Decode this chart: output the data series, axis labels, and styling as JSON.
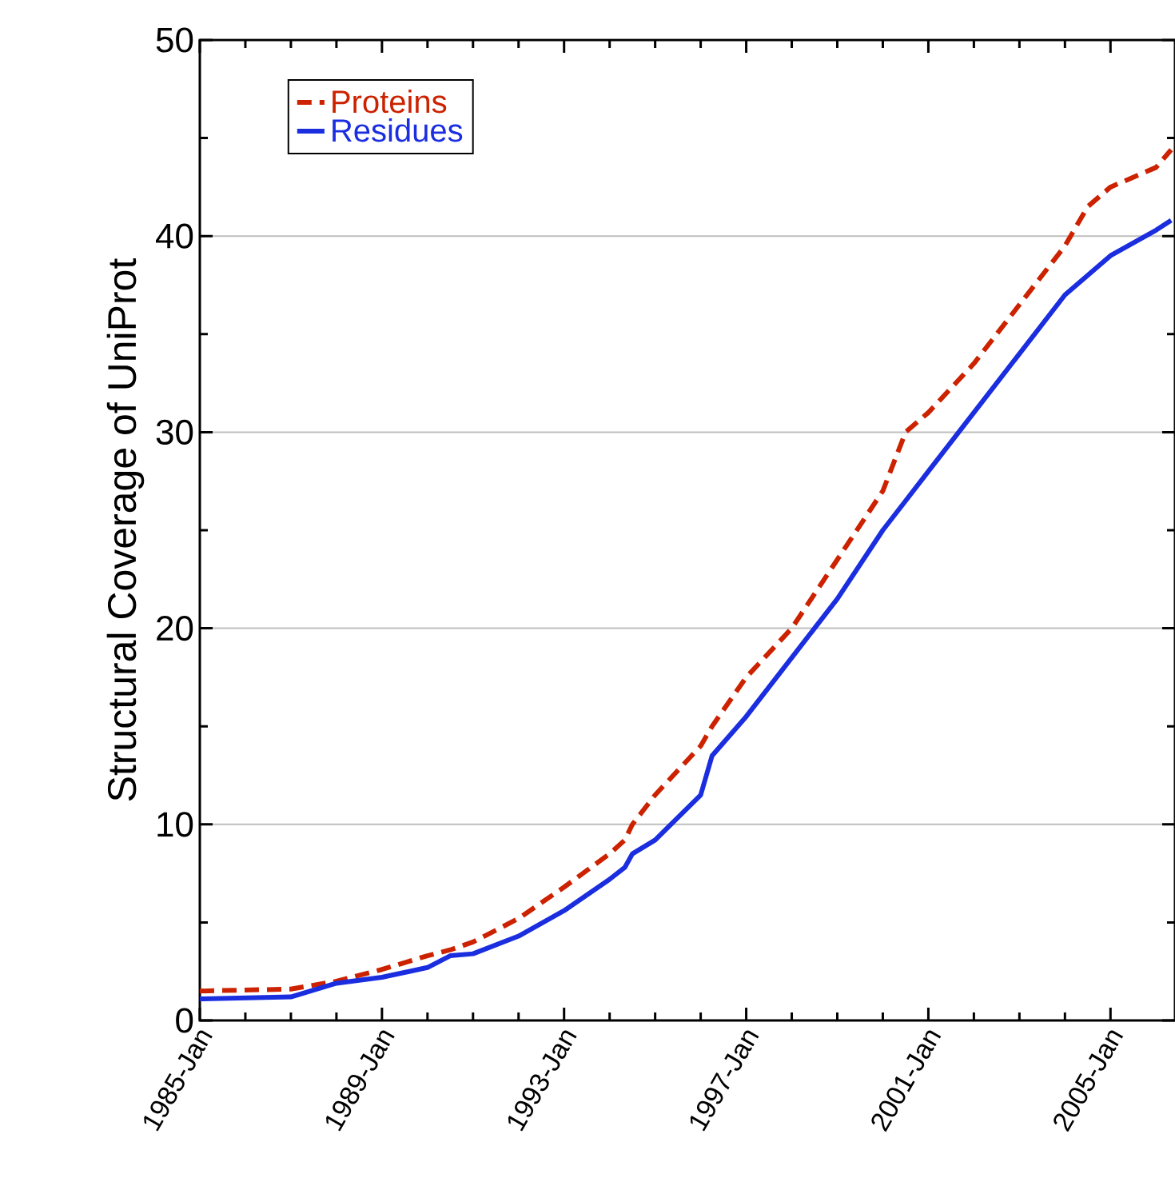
{
  "chart_data": {
    "type": "line",
    "ylabel": "Structural Coverage of UniProt",
    "x": [
      "1985-01",
      "1987-01",
      "1988-01",
      "1989-01",
      "1990-01",
      "1990-07",
      "1991-01",
      "1992-01",
      "1993-01",
      "1994-01",
      "1994-05",
      "1994-07",
      "1995-01",
      "1996-01",
      "1996-04",
      "1997-01",
      "1998-01",
      "1999-01",
      "2000-01",
      "2000-07",
      "2001-01",
      "2002-01",
      "2003-01",
      "2004-01",
      "2004-07",
      "2005-01",
      "2006-01",
      "2006-05"
    ],
    "series": [
      {
        "name": "Proteins",
        "color": "#cc2200",
        "line_style": "dashed",
        "values": [
          1.5,
          1.6,
          2.0,
          2.6,
          3.3,
          3.6,
          4.0,
          5.2,
          6.8,
          8.5,
          9.2,
          10.0,
          11.5,
          14.0,
          15.0,
          17.5,
          20.0,
          23.5,
          27.0,
          30.0,
          31.0,
          33.5,
          36.5,
          39.5,
          41.5,
          42.5,
          43.5,
          44.4
        ]
      },
      {
        "name": "Residues",
        "color": "#1a2ee0",
        "line_style": "solid",
        "values": [
          1.1,
          1.2,
          1.9,
          2.2,
          2.7,
          3.3,
          3.4,
          4.3,
          5.6,
          7.2,
          7.8,
          8.5,
          9.2,
          11.5,
          13.5,
          15.5,
          18.5,
          21.5,
          25.0,
          26.5,
          28.0,
          31.0,
          34.0,
          37.0,
          38.0,
          39.0,
          40.3,
          40.8
        ]
      }
    ],
    "xlim": [
      "1985-01",
      "2006-06"
    ],
    "xticks": [
      {
        "value": "1985-01",
        "label": "1985-Jan"
      },
      {
        "value": "1989-01",
        "label": "1989-Jan"
      },
      {
        "value": "1993-01",
        "label": "1993-Jan"
      },
      {
        "value": "1997-01",
        "label": "1997-Jan"
      },
      {
        "value": "2001-01",
        "label": "2001-Jan"
      },
      {
        "value": "2005-01",
        "label": "2005-Jan"
      }
    ],
    "ylim": [
      0,
      50
    ],
    "yticks": [
      0,
      10,
      20,
      30,
      40,
      50
    ],
    "grid": "y",
    "legend": "top left"
  }
}
